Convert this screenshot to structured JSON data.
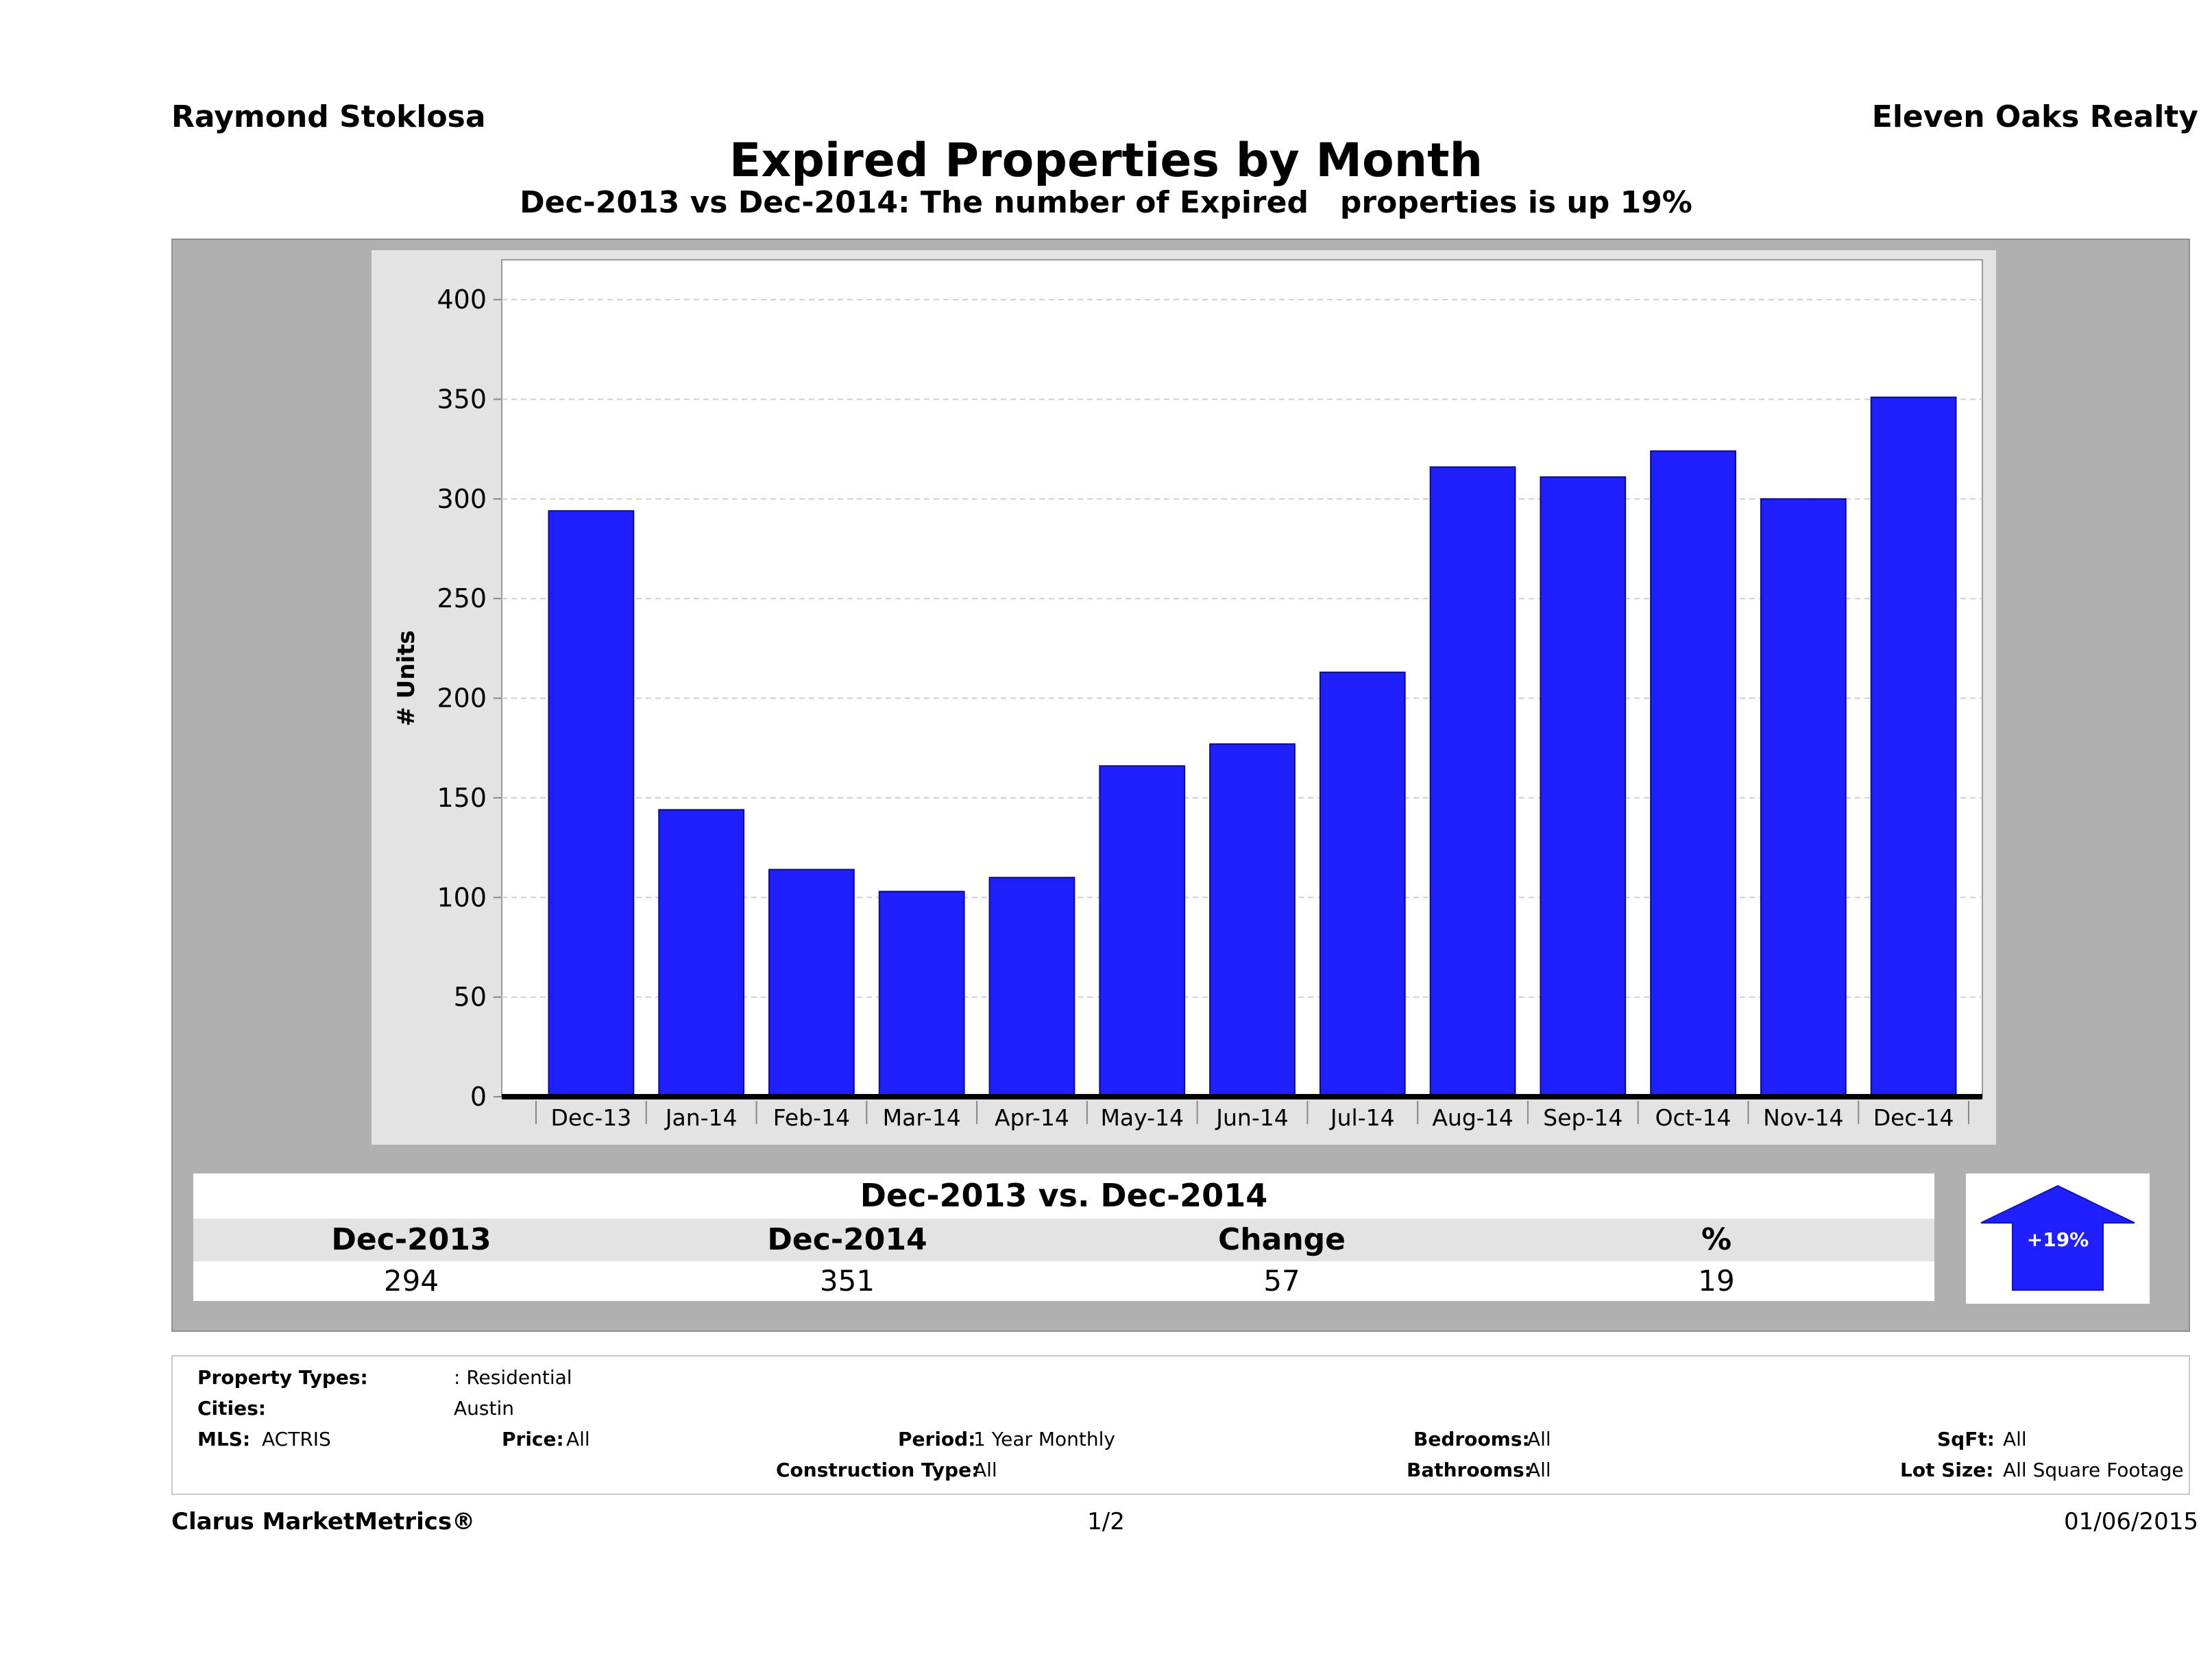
{
  "header": {
    "agent": "Raymond Stoklosa",
    "company": "Eleven Oaks Realty",
    "title": "Expired Properties by Month",
    "subtitle": "Dec-2013 vs Dec-2014: The number of Expired   properties is up 19%"
  },
  "chart_data": {
    "type": "bar",
    "title": "Expired Properties by Month",
    "ylabel": "# Units",
    "xlabel": "",
    "categories": [
      "Dec-13",
      "Jan-14",
      "Feb-14",
      "Mar-14",
      "Apr-14",
      "May-14",
      "Jun-14",
      "Jul-14",
      "Aug-14",
      "Sep-14",
      "Oct-14",
      "Nov-14",
      "Dec-14"
    ],
    "values": [
      294,
      144,
      114,
      103,
      110,
      166,
      177,
      213,
      316,
      311,
      324,
      300,
      351
    ],
    "ylim": [
      0,
      420
    ],
    "yticks": [
      0,
      50,
      100,
      150,
      200,
      250,
      300,
      350,
      400
    ],
    "grid": true,
    "bar_color": "#2020ff"
  },
  "summary": {
    "title": "Dec-2013 vs. Dec-2014",
    "headers": [
      "Dec-2013",
      "Dec-2014",
      "Change",
      "%"
    ],
    "values": [
      "294",
      "351",
      "57",
      "19"
    ],
    "badge": "+19%",
    "badge_color": "#2020ff"
  },
  "criteria": {
    "property_types_label": "Property Types:",
    "property_types_value": ": Residential",
    "cities_label": "Cities:",
    "cities_value": "Austin",
    "mls_label": "MLS:",
    "mls_value": "ACTRIS",
    "price_label": "Price:",
    "price_value": "All",
    "period_label": "Period:",
    "period_value": "1 Year Monthly",
    "construction_label": "Construction Type:",
    "construction_value": "All",
    "bedrooms_label": "Bedrooms:",
    "bedrooms_value": "All",
    "bathrooms_label": "Bathrooms:",
    "bathrooms_value": "All",
    "sqft_label": "SqFt:",
    "sqft_value": "All",
    "lotsize_label": "Lot Size:",
    "lotsize_value": "All Square Footage"
  },
  "footer": {
    "brand": "Clarus MarketMetrics®",
    "page": "1/2",
    "date": "01/06/2015"
  }
}
